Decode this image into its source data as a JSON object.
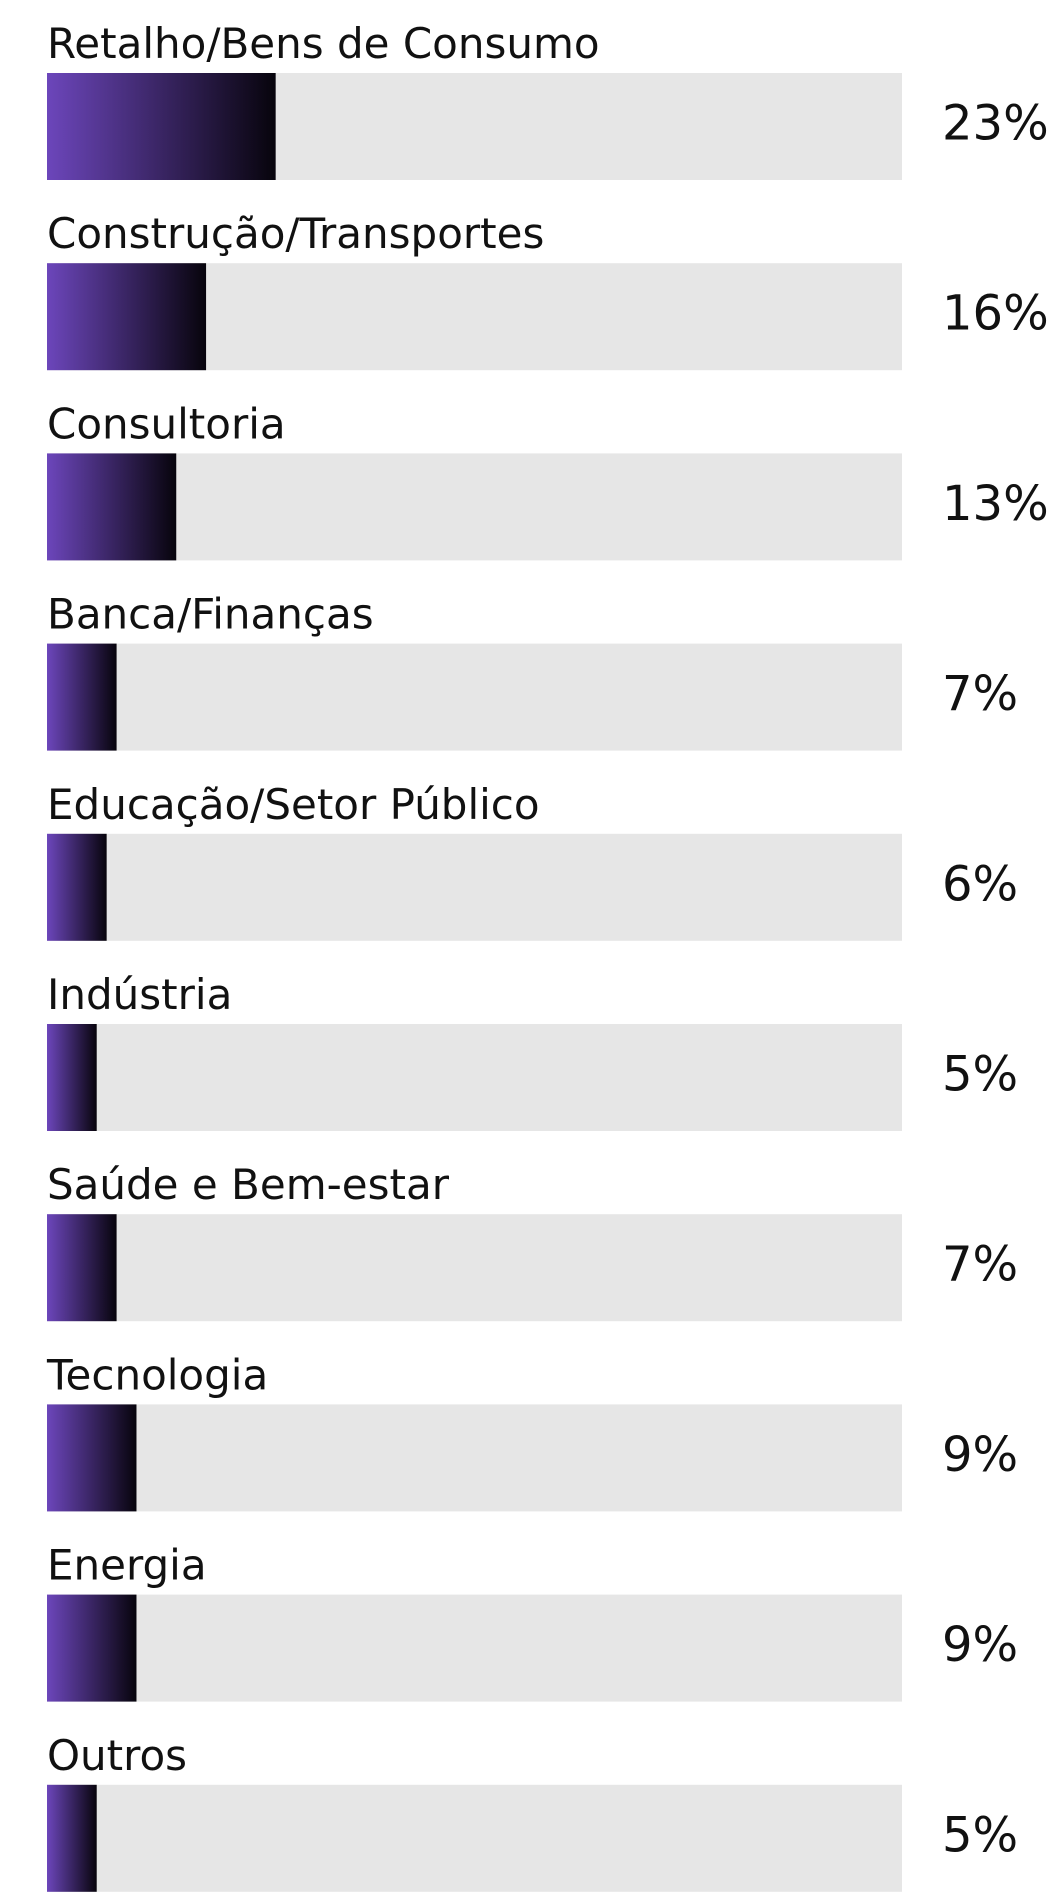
{
  "chart_data": {
    "type": "hbar",
    "categories": [
      "Retalho/Bens de Consumo",
      "Construção/Transportes",
      "Consultoria",
      "Banca/Finanças",
      "Educação/Setor Público",
      "Indústria",
      "Saúde e Bem-estar",
      "Tecnologia",
      "Energia",
      "Outros"
    ],
    "values": [
      23,
      16,
      13,
      7,
      6,
      5,
      7,
      9,
      9,
      5
    ],
    "value_labels": [
      "23%",
      "16%",
      "13%",
      "7%",
      "6%",
      "5%",
      "7%",
      "9%",
      "9%",
      "5%"
    ],
    "xlim": [
      0,
      86
    ],
    "colors": [
      "#6c46bb",
      "#07040c"
    ],
    "track_color": "#e6e6e6"
  }
}
